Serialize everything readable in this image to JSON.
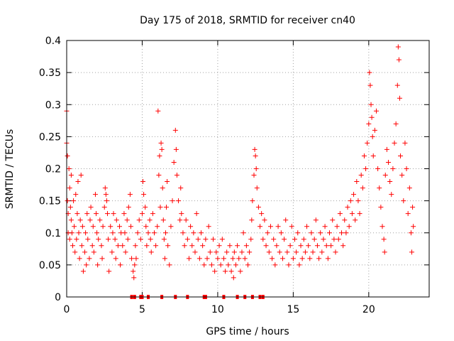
{
  "chart_data": {
    "type": "scatter",
    "title": "Day 175 of 2018, SRMTID for receiver cn40",
    "xlabel": "GPS time / hours",
    "ylabel": "SRMTID / TECUs",
    "xlim": [
      0,
      24
    ],
    "ylim": [
      0,
      0.4
    ],
    "x_ticks": [
      0,
      5,
      10,
      15,
      20
    ],
    "y_ticks": [
      0,
      0.05,
      0.1,
      0.15,
      0.2,
      0.25,
      0.3,
      0.35,
      0.4
    ],
    "x_tick_labels": [
      "0",
      "5",
      "10",
      "15",
      "20"
    ],
    "y_tick_labels": [
      "0",
      "0.05",
      "0.1",
      "0.15",
      "0.2",
      "0.25",
      "0.3",
      "0.35",
      "0.4"
    ],
    "grid": true,
    "marker_color": "#ff0000",
    "series": [
      {
        "name": "SRMTID",
        "marker": "plus",
        "points": [
          [
            0.0,
            0.29
          ],
          [
            0.0,
            0.24
          ],
          [
            0.05,
            0.22
          ],
          [
            0.05,
            0.15
          ],
          [
            0.1,
            0.13
          ],
          [
            0.1,
            0.1
          ],
          [
            0.15,
            0.2
          ],
          [
            0.2,
            0.17
          ],
          [
            0.2,
            0.09
          ],
          [
            0.25,
            0.14
          ],
          [
            0.3,
            0.12
          ],
          [
            0.3,
            0.19
          ],
          [
            0.35,
            0.1
          ],
          [
            0.4,
            0.08
          ],
          [
            0.45,
            0.15
          ],
          [
            0.5,
            0.11
          ],
          [
            0.55,
            0.07
          ],
          [
            0.6,
            0.16
          ],
          [
            0.65,
            0.09
          ],
          [
            0.7,
            0.13
          ],
          [
            0.75,
            0.18
          ],
          [
            0.8,
            0.1
          ],
          [
            0.85,
            0.06
          ],
          [
            0.9,
            0.12
          ],
          [
            0.95,
            0.19
          ],
          [
            1.0,
            0.08
          ],
          [
            1.05,
            0.11
          ],
          [
            1.1,
            0.04
          ],
          [
            1.2,
            0.07
          ],
          [
            1.25,
            0.1
          ],
          [
            1.3,
            0.05
          ],
          [
            1.35,
            0.13
          ],
          [
            1.4,
            0.09
          ],
          [
            1.5,
            0.06
          ],
          [
            1.55,
            0.12
          ],
          [
            1.6,
            0.14
          ],
          [
            1.7,
            0.08
          ],
          [
            1.75,
            0.11
          ],
          [
            1.8,
            0.07
          ],
          [
            1.9,
            0.16
          ],
          [
            1.95,
            0.13
          ],
          [
            2.0,
            0.1
          ],
          [
            2.05,
            0.05
          ],
          [
            2.1,
            0.09
          ],
          [
            2.2,
            0.12
          ],
          [
            2.3,
            0.08
          ],
          [
            2.35,
            0.06
          ],
          [
            2.4,
            0.11
          ],
          [
            2.5,
            0.14
          ],
          [
            2.55,
            0.17
          ],
          [
            2.6,
            0.16
          ],
          [
            2.65,
            0.15
          ],
          [
            2.7,
            0.13
          ],
          [
            2.75,
            0.09
          ],
          [
            2.8,
            0.04
          ],
          [
            2.9,
            0.11
          ],
          [
            3.0,
            0.07
          ],
          [
            3.05,
            0.1
          ],
          [
            3.1,
            0.13
          ],
          [
            3.2,
            0.09
          ],
          [
            3.25,
            0.06
          ],
          [
            3.3,
            0.12
          ],
          [
            3.4,
            0.08
          ],
          [
            3.5,
            0.11
          ],
          [
            3.55,
            0.05
          ],
          [
            3.6,
            0.1
          ],
          [
            3.7,
            0.08
          ],
          [
            3.8,
            0.13
          ],
          [
            3.85,
            0.1
          ],
          [
            3.9,
            0.07
          ],
          [
            4.0,
            0.12
          ],
          [
            4.05,
            0.09
          ],
          [
            4.1,
            0.14
          ],
          [
            4.2,
            0.16
          ],
          [
            4.25,
            0.11
          ],
          [
            4.3,
            0.06
          ],
          [
            4.4,
            0.04
          ],
          [
            4.45,
            0.03
          ],
          [
            4.5,
            0.05
          ],
          [
            4.55,
            0.08
          ],
          [
            4.6,
            0.06
          ],
          [
            4.7,
            0.1
          ],
          [
            4.8,
            0.12
          ],
          [
            4.9,
            0.09
          ],
          [
            5.0,
            0.13
          ],
          [
            5.05,
            0.18
          ],
          [
            5.1,
            0.16
          ],
          [
            5.2,
            0.14
          ],
          [
            5.25,
            0.11
          ],
          [
            5.3,
            0.08
          ],
          [
            5.4,
            0.1
          ],
          [
            5.5,
            0.12
          ],
          [
            5.55,
            0.09
          ],
          [
            5.6,
            0.07
          ],
          [
            5.7,
            0.13
          ],
          [
            5.8,
            0.1
          ],
          [
            5.9,
            0.08
          ],
          [
            6.0,
            0.11
          ],
          [
            6.05,
            0.29
          ],
          [
            6.1,
            0.19
          ],
          [
            6.15,
            0.22
          ],
          [
            6.2,
            0.14
          ],
          [
            6.25,
            0.24
          ],
          [
            6.3,
            0.23
          ],
          [
            6.35,
            0.17
          ],
          [
            6.4,
            0.12
          ],
          [
            6.45,
            0.09
          ],
          [
            6.5,
            0.06
          ],
          [
            6.55,
            0.1
          ],
          [
            6.6,
            0.14
          ],
          [
            6.65,
            0.18
          ],
          [
            6.7,
            0.08
          ],
          [
            6.8,
            0.05
          ],
          [
            6.9,
            0.11
          ],
          [
            7.0,
            0.15
          ],
          [
            7.1,
            0.21
          ],
          [
            7.2,
            0.26
          ],
          [
            7.25,
            0.23
          ],
          [
            7.3,
            0.19
          ],
          [
            7.4,
            0.15
          ],
          [
            7.5,
            0.12
          ],
          [
            7.55,
            0.17
          ],
          [
            7.6,
            0.13
          ],
          [
            7.7,
            0.1
          ],
          [
            7.8,
            0.08
          ],
          [
            7.9,
            0.12
          ],
          [
            8.0,
            0.09
          ],
          [
            8.1,
            0.06
          ],
          [
            8.2,
            0.11
          ],
          [
            8.3,
            0.08
          ],
          [
            8.4,
            0.1
          ],
          [
            8.5,
            0.07
          ],
          [
            8.6,
            0.13
          ],
          [
            8.7,
            0.09
          ],
          [
            8.8,
            0.06
          ],
          [
            8.9,
            0.1
          ],
          [
            9.0,
            0.08
          ],
          [
            9.1,
            0.05
          ],
          [
            9.2,
            0.09
          ],
          [
            9.3,
            0.06
          ],
          [
            9.4,
            0.11
          ],
          [
            9.5,
            0.07
          ],
          [
            9.6,
            0.05
          ],
          [
            9.7,
            0.09
          ],
          [
            9.8,
            0.04
          ],
          [
            9.9,
            0.07
          ],
          [
            10.0,
            0.06
          ],
          [
            10.1,
            0.08
          ],
          [
            10.2,
            0.05
          ],
          [
            10.3,
            0.09
          ],
          [
            10.4,
            0.06
          ],
          [
            10.5,
            0.04
          ],
          [
            10.6,
            0.07
          ],
          [
            10.7,
            0.05
          ],
          [
            10.8,
            0.08
          ],
          [
            10.9,
            0.04
          ],
          [
            11.0,
            0.06
          ],
          [
            11.05,
            0.03
          ],
          [
            11.1,
            0.07
          ],
          [
            11.2,
            0.05
          ],
          [
            11.3,
            0.08
          ],
          [
            11.4,
            0.06
          ],
          [
            11.5,
            0.04
          ],
          [
            11.6,
            0.07
          ],
          [
            11.7,
            0.1
          ],
          [
            11.8,
            0.06
          ],
          [
            11.9,
            0.08
          ],
          [
            12.0,
            0.05
          ],
          [
            12.1,
            0.07
          ],
          [
            12.2,
            0.09
          ],
          [
            12.25,
            0.12
          ],
          [
            12.3,
            0.15
          ],
          [
            12.4,
            0.19
          ],
          [
            12.45,
            0.23
          ],
          [
            12.5,
            0.22
          ],
          [
            12.55,
            0.2
          ],
          [
            12.6,
            0.17
          ],
          [
            12.7,
            0.14
          ],
          [
            12.8,
            0.11
          ],
          [
            12.9,
            0.13
          ],
          [
            13.0,
            0.09
          ],
          [
            13.1,
            0.12
          ],
          [
            13.2,
            0.08
          ],
          [
            13.3,
            0.1
          ],
          [
            13.4,
            0.07
          ],
          [
            13.5,
            0.11
          ],
          [
            13.6,
            0.06
          ],
          [
            13.7,
            0.09
          ],
          [
            13.8,
            0.05
          ],
          [
            13.9,
            0.08
          ],
          [
            14.0,
            0.11
          ],
          [
            14.1,
            0.07
          ],
          [
            14.2,
            0.1
          ],
          [
            14.3,
            0.06
          ],
          [
            14.4,
            0.09
          ],
          [
            14.5,
            0.12
          ],
          [
            14.6,
            0.07
          ],
          [
            14.7,
            0.05
          ],
          [
            14.8,
            0.08
          ],
          [
            14.9,
            0.11
          ],
          [
            15.0,
            0.06
          ],
          [
            15.1,
            0.09
          ],
          [
            15.2,
            0.07
          ],
          [
            15.3,
            0.1
          ],
          [
            15.4,
            0.05
          ],
          [
            15.5,
            0.08
          ],
          [
            15.6,
            0.06
          ],
          [
            15.7,
            0.09
          ],
          [
            15.8,
            0.07
          ],
          [
            15.9,
            0.11
          ],
          [
            16.0,
            0.08
          ],
          [
            16.1,
            0.06
          ],
          [
            16.2,
            0.1
          ],
          [
            16.3,
            0.07
          ],
          [
            16.4,
            0.09
          ],
          [
            16.5,
            0.12
          ],
          [
            16.6,
            0.08
          ],
          [
            16.7,
            0.06
          ],
          [
            16.8,
            0.1
          ],
          [
            16.9,
            0.07
          ],
          [
            17.0,
            0.09
          ],
          [
            17.1,
            0.11
          ],
          [
            17.2,
            0.08
          ],
          [
            17.3,
            0.06
          ],
          [
            17.4,
            0.1
          ],
          [
            17.5,
            0.08
          ],
          [
            17.6,
            0.12
          ],
          [
            17.7,
            0.09
          ],
          [
            17.8,
            0.07
          ],
          [
            17.9,
            0.11
          ],
          [
            18.0,
            0.09
          ],
          [
            18.1,
            0.13
          ],
          [
            18.2,
            0.1
          ],
          [
            18.3,
            0.08
          ],
          [
            18.4,
            0.12
          ],
          [
            18.5,
            0.1
          ],
          [
            18.6,
            0.14
          ],
          [
            18.7,
            0.11
          ],
          [
            18.8,
            0.15
          ],
          [
            18.9,
            0.13
          ],
          [
            19.0,
            0.16
          ],
          [
            19.1,
            0.12
          ],
          [
            19.2,
            0.18
          ],
          [
            19.3,
            0.15
          ],
          [
            19.4,
            0.13
          ],
          [
            19.5,
            0.19
          ],
          [
            19.6,
            0.17
          ],
          [
            19.7,
            0.22
          ],
          [
            19.8,
            0.2
          ],
          [
            19.9,
            0.24
          ],
          [
            20.0,
            0.27
          ],
          [
            20.05,
            0.35
          ],
          [
            20.1,
            0.33
          ],
          [
            20.15,
            0.3
          ],
          [
            20.2,
            0.28
          ],
          [
            20.25,
            0.25
          ],
          [
            20.3,
            0.22
          ],
          [
            20.4,
            0.26
          ],
          [
            20.5,
            0.29
          ],
          [
            20.6,
            0.2
          ],
          [
            20.7,
            0.17
          ],
          [
            20.8,
            0.14
          ],
          [
            20.9,
            0.11
          ],
          [
            21.0,
            0.09
          ],
          [
            21.05,
            0.07
          ],
          [
            21.1,
            0.19
          ],
          [
            21.2,
            0.23
          ],
          [
            21.3,
            0.21
          ],
          [
            21.4,
            0.18
          ],
          [
            21.5,
            0.16
          ],
          [
            21.6,
            0.2
          ],
          [
            21.7,
            0.24
          ],
          [
            21.8,
            0.27
          ],
          [
            21.9,
            0.33
          ],
          [
            21.95,
            0.39
          ],
          [
            22.0,
            0.37
          ],
          [
            22.05,
            0.31
          ],
          [
            22.1,
            0.22
          ],
          [
            22.2,
            0.19
          ],
          [
            22.3,
            0.15
          ],
          [
            22.4,
            0.24
          ],
          [
            22.5,
            0.2
          ],
          [
            22.6,
            0.13
          ],
          [
            22.7,
            0.17
          ],
          [
            22.8,
            0.1
          ],
          [
            22.85,
            0.07
          ],
          [
            22.9,
            0.14
          ],
          [
            22.95,
            0.11
          ]
        ]
      }
    ],
    "zero_markers_x": [
      4.3,
      4.5,
      4.9,
      5.0,
      5.4,
      6.3,
      7.2,
      8.0,
      9.1,
      9.2,
      10.4,
      11.3,
      11.8,
      12.3,
      12.8,
      13.0
    ]
  }
}
